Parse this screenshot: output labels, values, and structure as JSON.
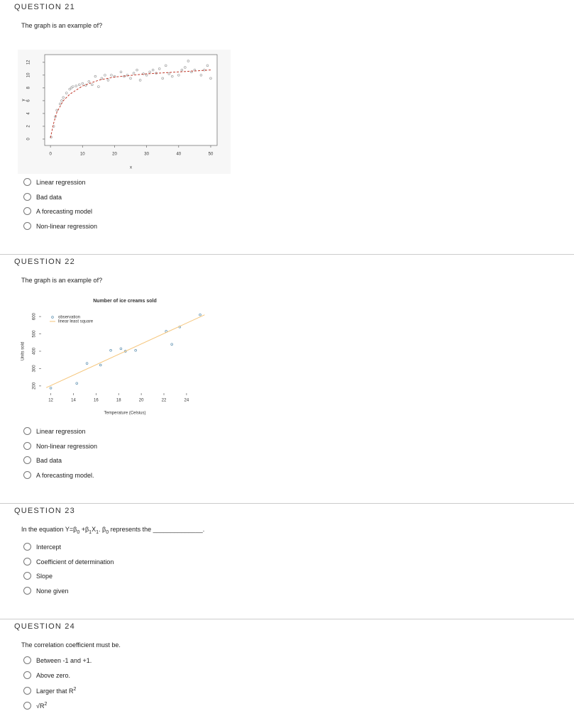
{
  "questions": [
    {
      "title": "QUESTION 21",
      "prompt": "The graph is an example of?",
      "chart": {
        "type": "scatter",
        "xlabel": "x",
        "ylabel": "y",
        "xlim": [
          -1.8,
          52
        ],
        "ylim": [
          -1,
          13.2
        ],
        "xticks": [
          0,
          10,
          20,
          30,
          40,
          50
        ],
        "yticks": [
          0,
          2,
          4,
          6,
          8,
          10,
          12
        ],
        "frame": true,
        "series": [
          {
            "color": "#a0a0a0",
            "style": "points",
            "x": [
              0.2,
              1,
              1.5,
              2,
              3,
              3.5,
              4,
              5,
              6,
              6.5,
              7,
              8,
              9,
              10,
              11,
              12,
              13,
              14,
              15,
              16,
              17,
              18,
              19,
              20,
              22,
              23,
              24,
              25,
              26,
              27,
              28,
              29,
              30,
              31,
              32,
              33,
              34,
              35,
              36,
              37,
              38,
              40,
              41,
              42,
              43,
              44,
              45,
              47,
              48,
              49,
              50
            ],
            "y": [
              0.3,
              2,
              3.5,
              4.5,
              5.5,
              6,
              6.5,
              7.2,
              7.8,
              8,
              8.2,
              8.3,
              8.5,
              8.7,
              8.4,
              9,
              8.5,
              9.8,
              8.2,
              9.5,
              10,
              9.2,
              10,
              9.8,
              10.5,
              9.8,
              10,
              9.5,
              10.3,
              10.8,
              9.2,
              10.2,
              10,
              10.5,
              10.8,
              10.3,
              11,
              9.5,
              11.5,
              10.2,
              9.8,
              10,
              10.8,
              11.2,
              12.2,
              10.5,
              10.8,
              10,
              10.8,
              11.5,
              9.5
            ]
          },
          {
            "color": "#c0392b",
            "style": "dashed",
            "x": [
              0,
              1,
              2,
              4,
              6,
              10,
              15,
              20,
              30,
              40,
              50
            ],
            "y": [
              0.2,
              2.5,
              4.2,
              6,
              7,
              8.3,
              9.2,
              9.7,
              10.2,
              10.5,
              10.8
            ]
          }
        ]
      },
      "options": [
        "Linear regression",
        "Bad data",
        "A forecasting model",
        "Non-linear regression"
      ]
    },
    {
      "title": "QUESTION 22",
      "prompt": "The graph is an example of?",
      "chart": {
        "type": "scatter",
        "title": "Number of ice creams sold",
        "xlabel": "Temperature (Celsius)",
        "ylabel": "Units sold",
        "xlim": [
          11.4,
          25.7
        ],
        "ylim": [
          175,
          625
        ],
        "xticks": [
          12,
          14,
          16,
          18,
          20,
          22,
          24
        ],
        "yticks": [
          200,
          300,
          400,
          500,
          600
        ],
        "frame": false,
        "series": [
          {
            "name": "observation",
            "color": "#5b8fb0",
            "style": "points",
            "x": [
              12,
              14.3,
              15.2,
              16.4,
              17.3,
              18.2,
              18.6,
              19.5,
              22.2,
              22.7,
              23.4,
              25.2
            ],
            "y": [
              188,
              215,
              330,
              320,
              405,
              415,
              400,
              405,
              515,
              440,
              540,
              610
            ]
          },
          {
            "name": "linear least square",
            "color": "#f5c57a",
            "style": "line",
            "x": [
              11.6,
              25.6
            ],
            "y": [
              190,
              610
            ]
          }
        ]
      },
      "options": [
        "Linear regression",
        "Non-linear regression",
        "Bad data",
        "A forecasting model."
      ]
    },
    {
      "title": "QUESTION 23",
      "prompt": [
        {
          "text": "In the equation Y=β"
        },
        {
          "text": "0",
          "sub": true
        },
        {
          "text": " +β"
        },
        {
          "text": "1",
          "sub": true
        },
        {
          "text": "X"
        },
        {
          "text": "1",
          "sub": true
        },
        {
          "text": ". β"
        },
        {
          "text": "0",
          "sub": true
        },
        {
          "text": " represents the ______________."
        }
      ],
      "options": [
        "Intercept",
        "Coefficient of determination",
        "Slope",
        "None given"
      ]
    },
    {
      "title": "QUESTION 24",
      "prompt": "The correlation coefficient must be.",
      "options": [
        "Between -1 and +1.",
        "Above zero.",
        [
          {
            "text": "Larger that R"
          },
          {
            "text": "2",
            "sup": true
          }
        ],
        [
          {
            "text": "√R"
          },
          {
            "text": "2",
            "sup": true
          }
        ]
      ]
    }
  ]
}
